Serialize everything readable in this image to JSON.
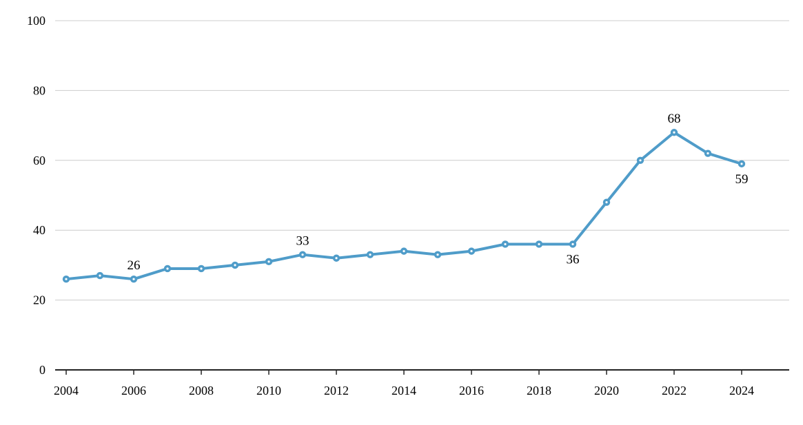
{
  "chart_data": {
    "type": "line",
    "title": "",
    "xlabel": "",
    "ylabel": "",
    "x": [
      2004,
      2005,
      2006,
      2007,
      2008,
      2009,
      2010,
      2011,
      2012,
      2013,
      2014,
      2015,
      2016,
      2017,
      2018,
      2019,
      2020,
      2021,
      2022,
      2023,
      2024
    ],
    "values": [
      26,
      27,
      26,
      29,
      29,
      30,
      31,
      33,
      32,
      33,
      34,
      33,
      34,
      36,
      36,
      36,
      48,
      60,
      68,
      62,
      59
    ],
    "annotations": [
      {
        "x": 2006,
        "label": "26",
        "position": "above"
      },
      {
        "x": 2011,
        "label": "33",
        "position": "above"
      },
      {
        "x": 2019,
        "label": "36",
        "position": "below"
      },
      {
        "x": 2022,
        "label": "68",
        "position": "above"
      },
      {
        "x": 2024,
        "label": "59",
        "position": "below"
      }
    ],
    "ylim": [
      0,
      100
    ],
    "yticks": [
      0,
      20,
      40,
      60,
      80,
      100
    ],
    "xtick_labels": [
      "2004",
      "2006",
      "2008",
      "2010",
      "2012",
      "2014",
      "2016",
      "2018",
      "2020",
      "2022",
      "2024"
    ],
    "grid": "horizontal",
    "legend": "none",
    "marker": "circle-with-dot",
    "line_color": "#4f9cc9",
    "gridline_color": "#cccccc",
    "axis_color": "#222222",
    "text_color": "#000000",
    "background": "#ffffff"
  }
}
